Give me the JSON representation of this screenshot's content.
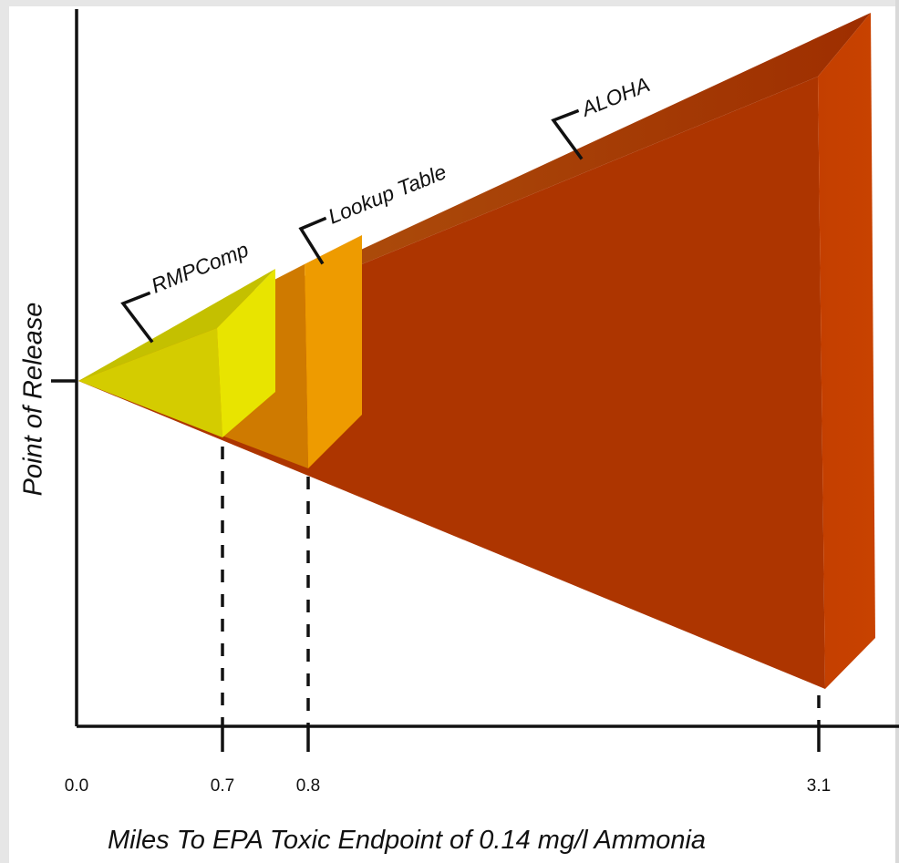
{
  "axes": {
    "x_title": "Miles To EPA Toxic Endpoint of 0.14 mg/l Ammonia",
    "y_title": "Point of Release",
    "x_ticks": [
      "0.0",
      "0.7",
      "0.8",
      "3.1"
    ]
  },
  "models": [
    {
      "name": "RMPComp",
      "distance": "0.7",
      "color": "#e6e000"
    },
    {
      "name": "Lookup Table",
      "distance": "0.8",
      "color": "#e89a00"
    },
    {
      "name": "ALOHA",
      "distance": "3.1",
      "color": "#b03a00"
    }
  ]
}
